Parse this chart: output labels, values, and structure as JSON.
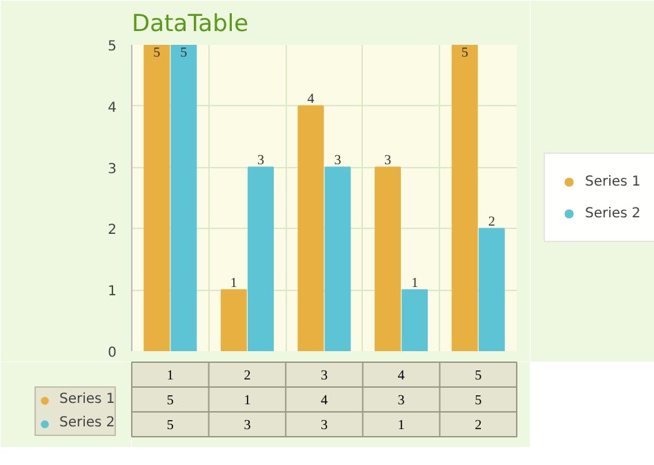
{
  "chart_data": {
    "type": "bar",
    "title": "DataTable",
    "categories": [
      "1",
      "2",
      "3",
      "4",
      "5"
    ],
    "series": [
      {
        "name": "Series 1",
        "color": "#e8b040",
        "values": [
          5,
          1,
          4,
          3,
          5
        ]
      },
      {
        "name": "Series 2",
        "color": "#5cc4d4",
        "values": [
          5,
          3,
          3,
          1,
          2
        ]
      }
    ],
    "ylim": [
      0,
      5
    ],
    "yticks": [
      0,
      1,
      2,
      3,
      4,
      5
    ],
    "grid": true,
    "legend": "right",
    "data_labels": true
  }
}
